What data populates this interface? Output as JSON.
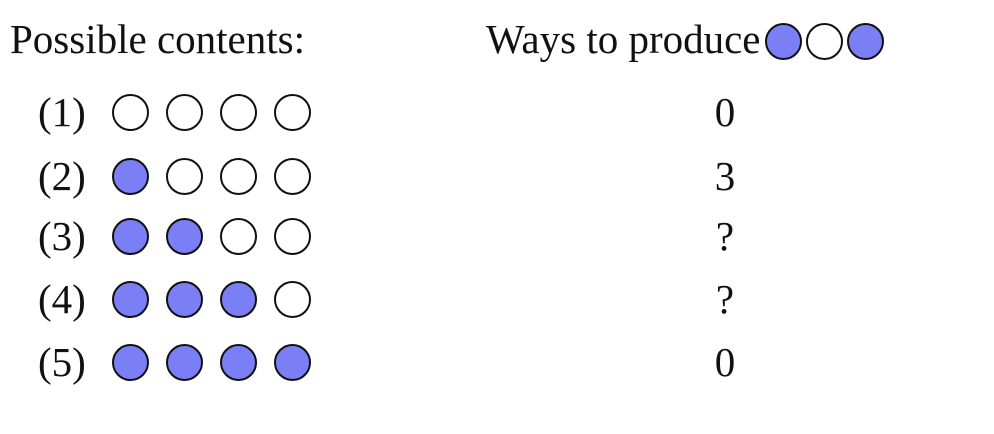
{
  "header": {
    "left_label": "Possible contents:",
    "right_label": "Ways to produce",
    "target": [
      true,
      false,
      true
    ]
  },
  "rows": [
    {
      "label": "(1)",
      "contents": [
        false,
        false,
        false,
        false
      ],
      "ways": "0"
    },
    {
      "label": "(2)",
      "contents": [
        true,
        false,
        false,
        false
      ],
      "ways": "3"
    },
    {
      "label": "(3)",
      "contents": [
        true,
        true,
        false,
        false
      ],
      "ways": "?"
    },
    {
      "label": "(4)",
      "contents": [
        true,
        true,
        true,
        false
      ],
      "ways": "?"
    },
    {
      "label": "(5)",
      "contents": [
        true,
        true,
        true,
        true
      ],
      "ways": "0"
    }
  ],
  "colors": {
    "filled": "#7b7ff5",
    "empty": "#ffffff",
    "outline": "#111111"
  }
}
